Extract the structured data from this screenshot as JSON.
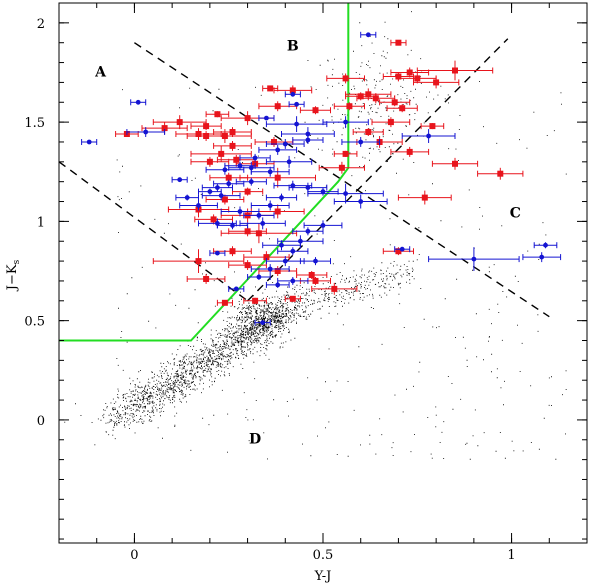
{
  "chart_data": {
    "type": "scatter",
    "title": "",
    "xlabel": "Y-J",
    "ylabel_main": "J",
    "ylabel_dash": "−",
    "ylabel_k": "K",
    "ylabel_sub": "s",
    "xlim": [
      -0.2,
      1.2
    ],
    "ylim": [
      -0.62,
      2.1
    ],
    "x_ticks": [
      0,
      0.5,
      1
    ],
    "x_tick_labels": [
      "0",
      "0.5",
      "1"
    ],
    "y_ticks": [
      0,
      0.5,
      1,
      1.5,
      2
    ],
    "y_tick_labels": [
      "0",
      "0.5",
      "1",
      "1.5",
      "2"
    ],
    "grid": false,
    "colors": {
      "red": "#e8141c",
      "blue": "#1414d2",
      "green": "#22dd22",
      "dashed": "#000000",
      "field": "#000000"
    },
    "region_labels": [
      {
        "text": "A",
        "x": -0.09,
        "y": 1.73
      },
      {
        "text": "B",
        "x": 0.42,
        "y": 1.86
      },
      {
        "text": "C",
        "x": 1.01,
        "y": 1.02
      },
      {
        "text": "D",
        "x": 0.32,
        "y": -0.12
      }
    ],
    "dashed_lines": [
      {
        "name": "dashed-line-upper",
        "points": [
          [
            0.0,
            1.9
          ],
          [
            1.1,
            0.52
          ]
        ]
      },
      {
        "name": "dashed-line-lower",
        "points": [
          [
            -0.2,
            1.3
          ],
          [
            0.3,
            0.6
          ]
        ]
      },
      {
        "name": "dashed-line-right",
        "points": [
          [
            0.3,
            0.6
          ],
          [
            0.99,
            1.92
          ]
        ]
      }
    ],
    "green_boundary": [
      [
        -0.2,
        0.4
      ],
      [
        0.15,
        0.4
      ],
      [
        0.54,
        1.2
      ],
      [
        0.567,
        1.27
      ],
      [
        0.567,
        2.1
      ]
    ],
    "field_population": {
      "name": "field stars",
      "count": 11000
    },
    "series": [
      {
        "name": "red",
        "points": [
          [
            0.7,
            1.9,
            0.02
          ],
          [
            0.56,
            1.72,
            0.05
          ],
          [
            0.7,
            1.73,
            0.04
          ],
          [
            0.73,
            1.75,
            0.05
          ],
          [
            0.75,
            1.72,
            0.05
          ],
          [
            0.8,
            1.7,
            0.06
          ],
          [
            0.85,
            1.76,
            0.1
          ],
          [
            0.42,
            1.66,
            0.05
          ],
          [
            0.6,
            1.63,
            0.04
          ],
          [
            0.62,
            1.64,
            0.06
          ],
          [
            0.64,
            1.62,
            0.05
          ],
          [
            0.69,
            1.6,
            0.04
          ],
          [
            0.71,
            1.57,
            0.04
          ],
          [
            0.36,
            1.67,
            0.02
          ],
          [
            0.57,
            1.58,
            0.04
          ],
          [
            0.38,
            1.58,
            0.05
          ],
          [
            0.48,
            1.56,
            0.04
          ],
          [
            0.68,
            1.5,
            0.05
          ],
          [
            0.79,
            1.48,
            0.03
          ],
          [
            0.62,
            1.45,
            0.04
          ],
          [
            0.65,
            1.4,
            0.06
          ],
          [
            0.73,
            1.35,
            0.05
          ],
          [
            0.56,
            1.34,
            0.03
          ],
          [
            0.55,
            1.27,
            0.06
          ],
          [
            0.85,
            1.29,
            0.06
          ],
          [
            0.97,
            1.24,
            0.06
          ],
          [
            0.12,
            1.5,
            0.07
          ],
          [
            0.22,
            1.54,
            0.03
          ],
          [
            0.19,
            1.48,
            0.04
          ],
          [
            0.17,
            1.44,
            0.06
          ],
          [
            0.08,
            1.47,
            0.06
          ],
          [
            -0.02,
            1.44,
            0.03
          ],
          [
            0.19,
            1.43,
            0.05
          ],
          [
            0.24,
            1.43,
            0.07
          ],
          [
            0.3,
            1.52,
            0.07
          ],
          [
            0.26,
            1.45,
            0.05
          ],
          [
            0.26,
            1.38,
            0.05
          ],
          [
            0.23,
            1.34,
            0.08
          ],
          [
            0.27,
            1.31,
            0.05
          ],
          [
            0.32,
            1.29,
            0.05
          ],
          [
            0.2,
            1.3,
            0.05
          ],
          [
            0.37,
            1.4,
            0.05
          ],
          [
            0.25,
            1.22,
            0.05
          ],
          [
            0.38,
            1.22,
            0.1
          ],
          [
            0.3,
            1.15,
            0.04
          ],
          [
            0.24,
            1.11,
            0.05
          ],
          [
            0.17,
            1.06,
            0.08
          ],
          [
            0.3,
            1.03,
            0.07
          ],
          [
            0.38,
            1.05,
            0.07
          ],
          [
            0.21,
            1.01,
            0.05
          ],
          [
            0.3,
            0.95,
            0.05
          ],
          [
            0.33,
            0.94,
            0.1
          ],
          [
            0.26,
            0.85,
            0.05
          ],
          [
            0.35,
            0.82,
            0.06
          ],
          [
            0.17,
            0.8,
            0.12
          ],
          [
            0.3,
            0.78,
            0.05
          ],
          [
            0.19,
            0.71,
            0.05
          ],
          [
            0.77,
            1.12,
            0.07
          ],
          [
            0.7,
            0.85,
            0.04
          ],
          [
            0.38,
            0.75,
            0.05
          ],
          [
            0.48,
            0.7,
            0.04
          ],
          [
            0.53,
            0.66,
            0.06
          ],
          [
            0.42,
            0.61,
            0.02
          ],
          [
            0.47,
            0.73,
            0.04
          ],
          [
            0.32,
            0.6,
            0.03
          ],
          [
            0.24,
            0.59,
            0.02
          ]
        ]
      },
      {
        "name": "blue",
        "points": [
          [
            0.62,
            1.94,
            0.02
          ],
          [
            -0.12,
            1.4,
            0.02
          ],
          [
            0.01,
            1.6,
            0.02
          ],
          [
            0.03,
            1.45,
            0.05
          ],
          [
            0.42,
            1.64,
            0.02
          ],
          [
            0.43,
            1.59,
            0.02
          ],
          [
            0.35,
            1.52,
            0.02
          ],
          [
            0.43,
            1.49,
            0.08
          ],
          [
            0.46,
            1.41,
            0.04
          ],
          [
            0.56,
            1.5,
            0.06
          ],
          [
            0.6,
            1.4,
            0.05
          ],
          [
            0.4,
            1.39,
            0.05
          ],
          [
            0.46,
            1.44,
            0.07
          ],
          [
            0.78,
            1.43,
            0.07
          ],
          [
            0.38,
            1.36,
            0.05
          ],
          [
            0.32,
            1.32,
            0.04
          ],
          [
            0.28,
            1.28,
            0.04
          ],
          [
            0.24,
            1.26,
            0.05
          ],
          [
            0.31,
            1.27,
            0.06
          ],
          [
            0.41,
            1.3,
            0.06
          ],
          [
            0.36,
            1.25,
            0.05
          ],
          [
            0.31,
            1.2,
            0.04
          ],
          [
            0.25,
            1.19,
            0.04
          ],
          [
            0.22,
            1.17,
            0.04
          ],
          [
            0.12,
            1.21,
            0.02
          ],
          [
            0.42,
            1.18,
            0.05
          ],
          [
            0.46,
            1.17,
            0.05
          ],
          [
            0.56,
            1.14,
            0.1
          ],
          [
            0.5,
            1.15,
            0.04
          ],
          [
            0.6,
            1.1,
            0.07
          ],
          [
            0.39,
            1.12,
            0.04
          ],
          [
            0.2,
            1.15,
            0.03
          ],
          [
            0.23,
            1.13,
            0.05
          ],
          [
            0.14,
            1.12,
            0.03
          ],
          [
            0.17,
            1.08,
            0.05
          ],
          [
            0.36,
            1.08,
            0.05
          ],
          [
            0.28,
            1.05,
            0.05
          ],
          [
            0.33,
            1.03,
            0.04
          ],
          [
            0.26,
            0.98,
            0.04
          ],
          [
            0.22,
            0.99,
            0.05
          ],
          [
            0.34,
            0.99,
            0.06
          ],
          [
            0.5,
            0.98,
            0.05
          ],
          [
            0.46,
            0.95,
            0.04
          ],
          [
            0.44,
            0.9,
            0.06
          ],
          [
            0.39,
            0.88,
            0.05
          ],
          [
            0.42,
            0.85,
            0.04
          ],
          [
            0.22,
            0.84,
            0.02
          ],
          [
            0.48,
            0.8,
            0.04
          ],
          [
            0.71,
            0.86,
            0.02
          ],
          [
            0.9,
            0.81,
            0.12
          ],
          [
            1.09,
            0.88,
            0.03
          ],
          [
            1.08,
            0.82,
            0.05
          ],
          [
            0.4,
            0.8,
            0.05
          ],
          [
            0.36,
            0.76,
            0.05
          ],
          [
            0.33,
            0.72,
            0.03
          ],
          [
            0.27,
            0.66,
            0.02
          ],
          [
            0.38,
            0.68,
            0.03
          ],
          [
            0.42,
            0.7,
            0.04
          ],
          [
            0.34,
            0.49,
            0.02
          ]
        ]
      }
    ]
  }
}
